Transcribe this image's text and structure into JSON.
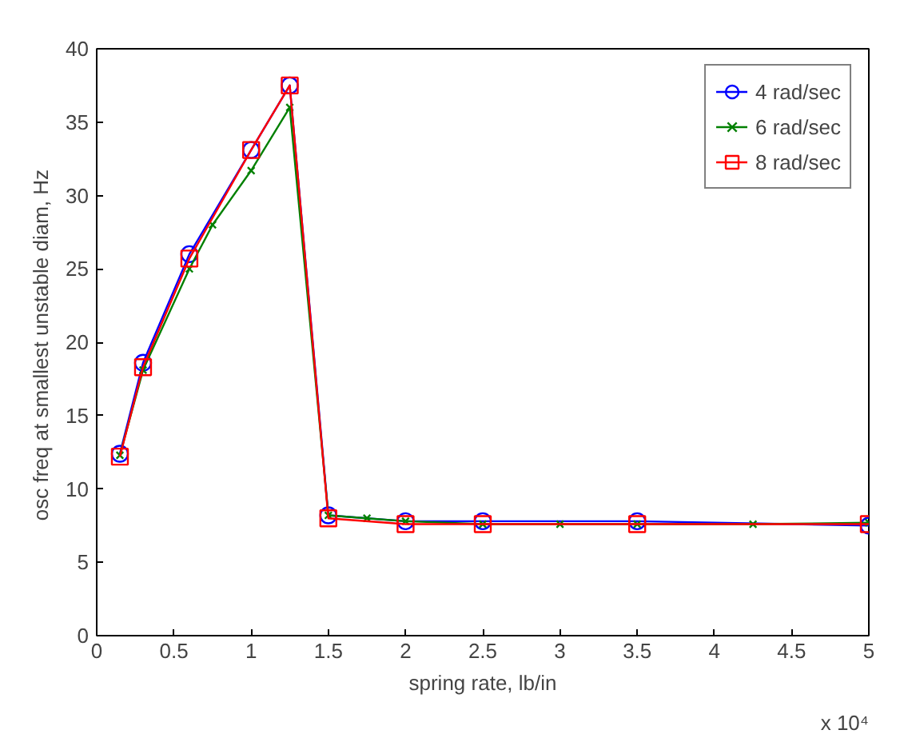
{
  "chart_data": {
    "type": "line",
    "xlabel": "spring rate, lb/in",
    "ylabel": "osc freq at smallest unstable diam,  Hz",
    "annotations": [
      "x 10⁴"
    ],
    "xlim": [
      0,
      5
    ],
    "ylim": [
      0,
      40
    ],
    "xticks": [
      0,
      0.5,
      1,
      1.5,
      2,
      2.5,
      3,
      3.5,
      4,
      4.5,
      5
    ],
    "yticks": [
      0,
      5,
      10,
      15,
      20,
      25,
      30,
      35,
      40
    ],
    "grid": false,
    "legend": "top right",
    "series": [
      {
        "name": "4 rad/sec",
        "color": "#0000ff",
        "marker": "circle",
        "x": [
          0.15,
          0.3,
          0.6,
          1.0,
          1.25,
          1.5,
          2.0,
          2.5,
          3.5,
          5.0
        ],
        "values": [
          12.4,
          18.6,
          26.0,
          33.1,
          37.5,
          8.2,
          7.8,
          7.8,
          7.8,
          7.5
        ]
      },
      {
        "name": "6 rad/sec",
        "color": "#008000",
        "marker": "cross",
        "x": [
          0.15,
          0.3,
          0.6,
          0.75,
          1.0,
          1.25,
          1.5,
          1.75,
          2.0,
          2.5,
          3.0,
          3.5,
          4.25,
          5.0
        ],
        "values": [
          12.3,
          18.1,
          25.0,
          28.0,
          31.7,
          36.0,
          8.2,
          8.0,
          7.8,
          7.6,
          7.6,
          7.6,
          7.6,
          7.7
        ]
      },
      {
        "name": "8 rad/sec",
        "color": "#ff0000",
        "marker": "square",
        "x": [
          0.15,
          0.3,
          0.6,
          1.0,
          1.25,
          1.5,
          2.0,
          2.5,
          3.5,
          5.0
        ],
        "values": [
          12.2,
          18.3,
          25.7,
          33.1,
          37.5,
          8.0,
          7.6,
          7.6,
          7.6,
          7.6
        ]
      }
    ]
  }
}
